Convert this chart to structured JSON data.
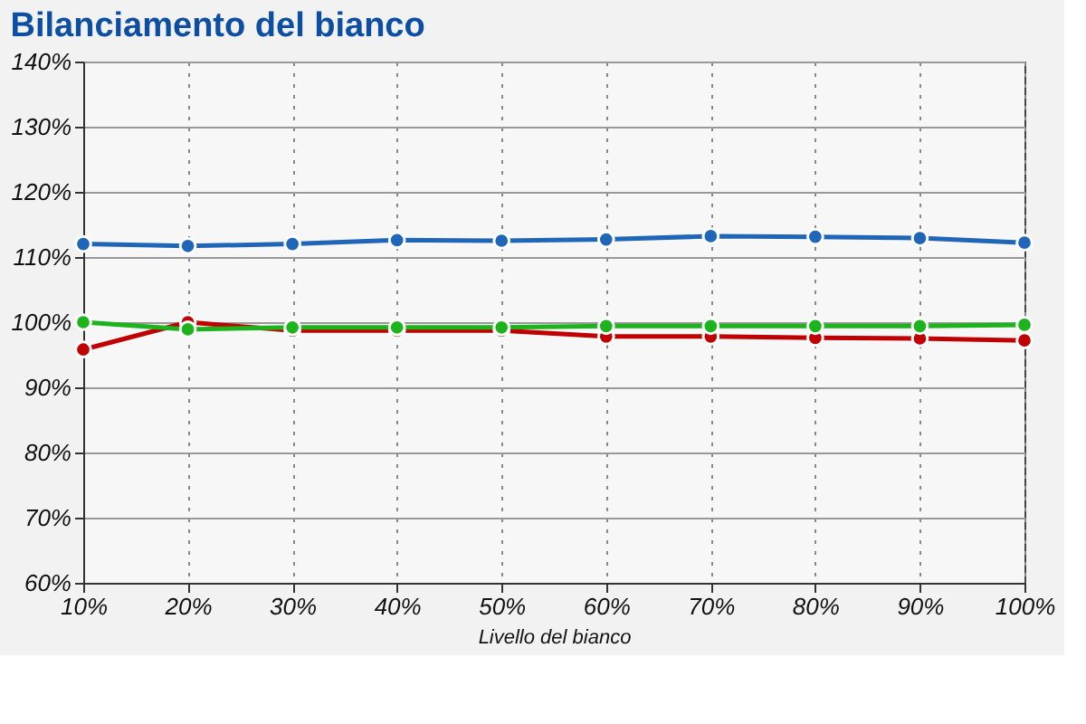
{
  "chart_data": {
    "type": "line",
    "title": "Bilanciamento del bianco",
    "xlabel": "Livello del bianco",
    "categories": [
      "10%",
      "20%",
      "30%",
      "40%",
      "50%",
      "60%",
      "70%",
      "80%",
      "90%",
      "100%"
    ],
    "series": [
      {
        "color": "#1f66b8",
        "values": [
          112,
          111.7,
          112,
          112.6,
          112.5,
          112.7,
          113.2,
          113.1,
          112.9,
          112.2
        ]
      },
      {
        "color": "#c00000",
        "values": [
          95.8,
          100,
          98.7,
          98.7,
          98.7,
          97.8,
          97.8,
          97.6,
          97.5,
          97.2
        ]
      },
      {
        "color": "#1db31d",
        "values": [
          100,
          98.9,
          99.2,
          99.2,
          99.2,
          99.4,
          99.4,
          99.4,
          99.4,
          99.6
        ]
      }
    ],
    "ylim": [
      60,
      140
    ],
    "yticks": [
      {
        "value": 60,
        "label": "60%"
      },
      {
        "value": 70,
        "label": "70%"
      },
      {
        "value": 80,
        "label": "80%"
      },
      {
        "value": 90,
        "label": "90%"
      },
      {
        "value": 100,
        "label": "100%"
      },
      {
        "value": 110,
        "label": "110%"
      },
      {
        "value": 120,
        "label": "120%"
      },
      {
        "value": 130,
        "label": "130%"
      },
      {
        "value": 140,
        "label": "140%"
      }
    ],
    "grid": true,
    "marker": "circle",
    "line_style": "solid",
    "legend": false
  }
}
